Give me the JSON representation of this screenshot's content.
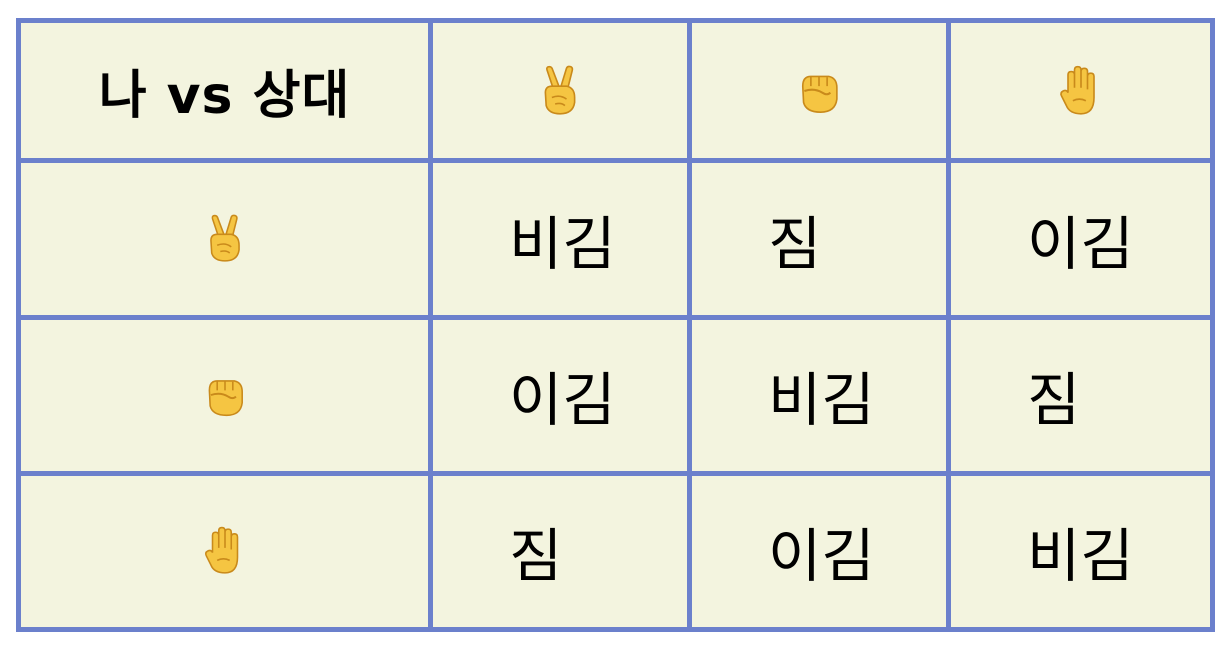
{
  "table": {
    "corner_label": "나 vs 상대",
    "column_headers": [
      {
        "icon": "scissors-hand-icon"
      },
      {
        "icon": "rock-fist-icon"
      },
      {
        "icon": "paper-hand-icon"
      }
    ],
    "rows": [
      {
        "icon": "scissors-hand-icon",
        "cells": [
          "비김",
          "짐",
          "이김"
        ]
      },
      {
        "icon": "rock-fist-icon",
        "cells": [
          "이김",
          "비김",
          "짐"
        ]
      },
      {
        "icon": "paper-hand-icon",
        "cells": [
          "짐",
          "이김",
          "비김"
        ]
      }
    ]
  },
  "colors": {
    "border": "#6b80cc",
    "cell_background": "#f3f4df",
    "emoji_skin": "#f5c542",
    "emoji_shade": "#c98a1b"
  }
}
